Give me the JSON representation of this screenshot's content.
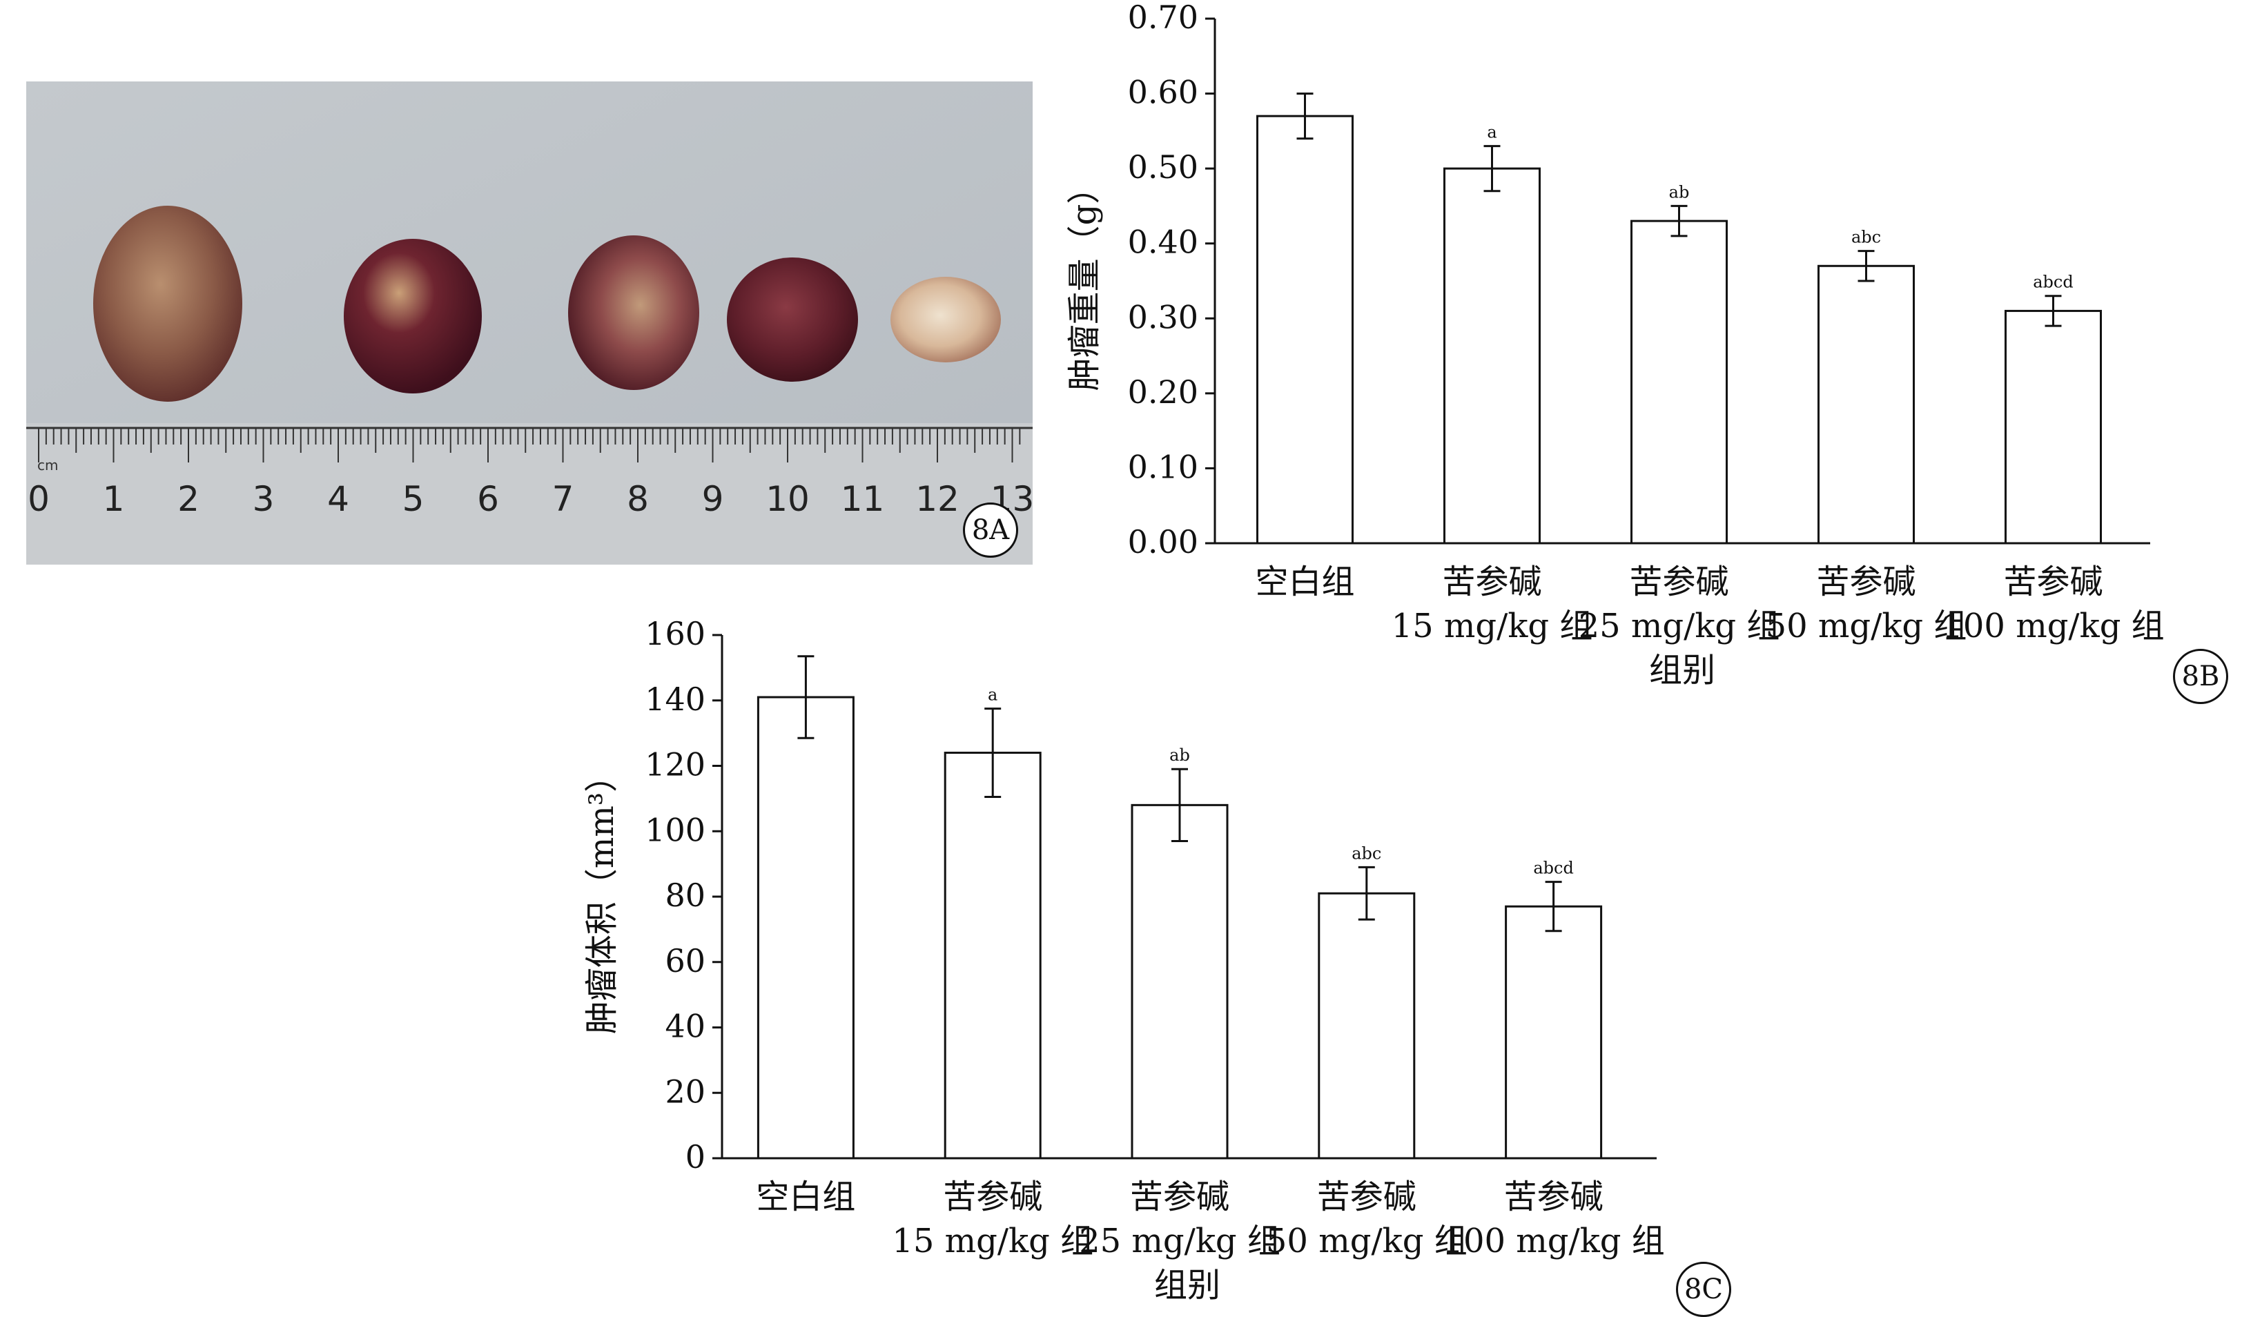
{
  "panel_a": {
    "label": "8A",
    "ruler_unit": "cm",
    "ruler_numbers": [
      "0",
      "1",
      "2",
      "3",
      "4",
      "5",
      "6",
      "7",
      "8",
      "9",
      "10",
      "11",
      "12",
      "13"
    ]
  },
  "chart_data": [
    {
      "panel": "8B",
      "type": "bar",
      "categories": [
        [
          "空白组",
          ""
        ],
        [
          "苦参碱",
          "15 mg/kg 组"
        ],
        [
          "苦参碱",
          "25 mg/kg 组"
        ],
        [
          "苦参碱",
          "50 mg/kg 组"
        ],
        [
          "苦参碱",
          "100 mg/kg 组"
        ]
      ],
      "values": [
        0.57,
        0.5,
        0.43,
        0.37,
        0.31
      ],
      "errors": [
        0.03,
        0.03,
        0.02,
        0.02,
        0.02
      ],
      "annotations": [
        "",
        "a",
        "ab",
        "abc",
        "abcd"
      ],
      "xlabel": "组别",
      "ylabel": "肿瘤重量（g）",
      "ylim": [
        0,
        0.7
      ],
      "yticks": [
        "0.00",
        "0.10",
        "0.20",
        "0.30",
        "0.40",
        "0.50",
        "0.60",
        "0.70"
      ],
      "grid": false
    },
    {
      "panel": "8C",
      "type": "bar",
      "categories": [
        [
          "空白组",
          ""
        ],
        [
          "苦参碱",
          "15 mg/kg 组"
        ],
        [
          "苦参碱",
          "25 mg/kg 组"
        ],
        [
          "苦参碱",
          "50 mg/kg 组"
        ],
        [
          "苦参碱",
          "100 mg/kg 组"
        ]
      ],
      "values": [
        141,
        124,
        108,
        81,
        77
      ],
      "errors": [
        12.5,
        13.5,
        11,
        8,
        7.5
      ],
      "annotations": [
        "",
        "a",
        "ab",
        "abc",
        "abcd"
      ],
      "xlabel": "组别",
      "ylabel": "肿瘤体积（mm³）",
      "ylim": [
        0,
        160
      ],
      "yticks": [
        "0",
        "20",
        "40",
        "60",
        "80",
        "100",
        "120",
        "140",
        "160"
      ],
      "grid": false
    }
  ]
}
